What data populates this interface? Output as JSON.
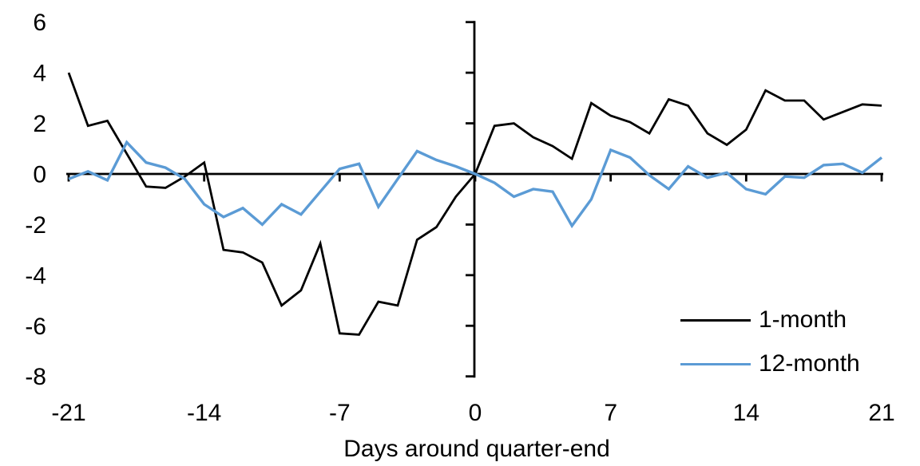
{
  "chart_data": {
    "type": "line",
    "title": "",
    "xlabel": "Days around quarter-end",
    "ylabel": "",
    "xlim": [
      -21,
      21
    ],
    "ylim": [
      -8,
      6
    ],
    "x_ticks": [
      "-21",
      "-14",
      "-7",
      "0",
      "7",
      "14",
      "21"
    ],
    "x_tick_values": [
      -21,
      -14,
      -7,
      0,
      7,
      14,
      21
    ],
    "y_ticks": [
      "6",
      "4",
      "2",
      "0",
      "-2",
      "-4",
      "-6",
      "-8"
    ],
    "y_tick_values": [
      6,
      4,
      2,
      0,
      -2,
      -4,
      -6,
      -8
    ],
    "grid": false,
    "legend_position": "inside-bottom-right",
    "x": [
      -21,
      -20,
      -19,
      -18,
      -17,
      -16,
      -15,
      -14,
      -13,
      -12,
      -11,
      -10,
      -9,
      -8,
      -7,
      -6,
      -5,
      -4,
      -3,
      -2,
      -1,
      0,
      1,
      2,
      3,
      4,
      5,
      6,
      7,
      8,
      9,
      10,
      11,
      12,
      13,
      14,
      15,
      16,
      17,
      18,
      19,
      20,
      21
    ],
    "series": [
      {
        "name": "1-month",
        "color": "#000000",
        "values": [
          4.0,
          1.9,
          2.1,
          0.8,
          -0.5,
          -0.55,
          -0.1,
          0.45,
          -3.0,
          -3.1,
          -3.5,
          -5.2,
          -4.6,
          -2.75,
          -6.3,
          -6.35,
          -5.05,
          -5.2,
          -2.6,
          -2.1,
          -0.9,
          0.0,
          1.9,
          2.0,
          1.45,
          1.1,
          0.6,
          2.8,
          2.3,
          2.05,
          1.6,
          2.95,
          2.7,
          1.6,
          1.15,
          1.75,
          3.3,
          2.9,
          2.9,
          2.15,
          2.45,
          2.75,
          2.7
        ]
      },
      {
        "name": "12-month",
        "color": "#5B9BD5",
        "values": [
          -0.2,
          0.1,
          -0.25,
          1.25,
          0.45,
          0.25,
          -0.2,
          -1.2,
          -1.7,
          -1.35,
          -2.0,
          -1.2,
          -1.6,
          -0.7,
          0.2,
          0.4,
          -1.3,
          -0.2,
          0.9,
          0.55,
          0.3,
          0.0,
          -0.35,
          -0.9,
          -0.6,
          -0.7,
          -2.05,
          -1.0,
          0.95,
          0.65,
          -0.05,
          -0.6,
          0.3,
          -0.15,
          0.05,
          -0.6,
          -0.8,
          -0.1,
          -0.15,
          0.35,
          0.4,
          0.05,
          0.65
        ]
      }
    ]
  }
}
